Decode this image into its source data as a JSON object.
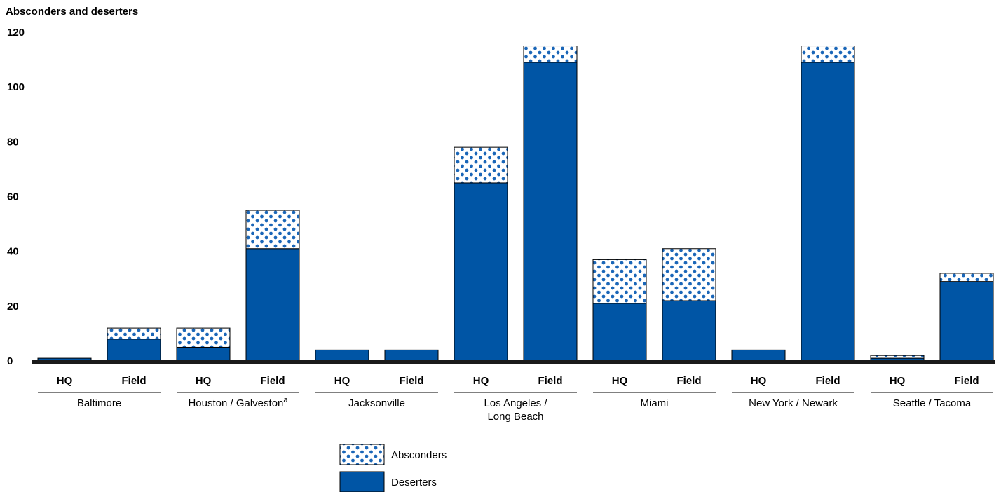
{
  "chart_data": {
    "type": "bar",
    "stacked": true,
    "title": "",
    "ylabel": "Absconders and deserters",
    "xlabel": "",
    "ylim": [
      0,
      120
    ],
    "yticks": [
      0,
      20,
      40,
      60,
      80,
      100,
      120
    ],
    "grid": false,
    "legend_position": "bottom-center",
    "groups": [
      {
        "name": "Baltimore",
        "name_lines": [
          "Baltimore"
        ],
        "footnote": ""
      },
      {
        "name": "Houston / Galveston",
        "name_lines": [
          "Houston / Galveston"
        ],
        "footnote": "a"
      },
      {
        "name": "Jacksonville",
        "name_lines": [
          "Jacksonville"
        ],
        "footnote": ""
      },
      {
        "name": "Los Angeles / Long Beach",
        "name_lines": [
          "Los Angeles /",
          "Long Beach"
        ],
        "footnote": ""
      },
      {
        "name": "Miami",
        "name_lines": [
          "Miami"
        ],
        "footnote": ""
      },
      {
        "name": "New York / Newark",
        "name_lines": [
          "New York / Newark"
        ],
        "footnote": ""
      },
      {
        "name": "Seattle / Tacoma",
        "name_lines": [
          "Seattle / Tacoma"
        ],
        "footnote": ""
      }
    ],
    "subcategories": [
      "HQ",
      "Field"
    ],
    "series": [
      {
        "name": "Deserters",
        "color": "#0055a5",
        "values": [
          1,
          8,
          5,
          41,
          4,
          4,
          65,
          109,
          21,
          22,
          4,
          109,
          1,
          29
        ]
      },
      {
        "name": "Absconders",
        "color": "#1a66b8",
        "pattern": "dots",
        "values": [
          0,
          4,
          7,
          14,
          0,
          0,
          13,
          6,
          16,
          19,
          0,
          6,
          1,
          3
        ]
      }
    ],
    "legend_order": [
      "Absconders",
      "Deserters"
    ]
  }
}
